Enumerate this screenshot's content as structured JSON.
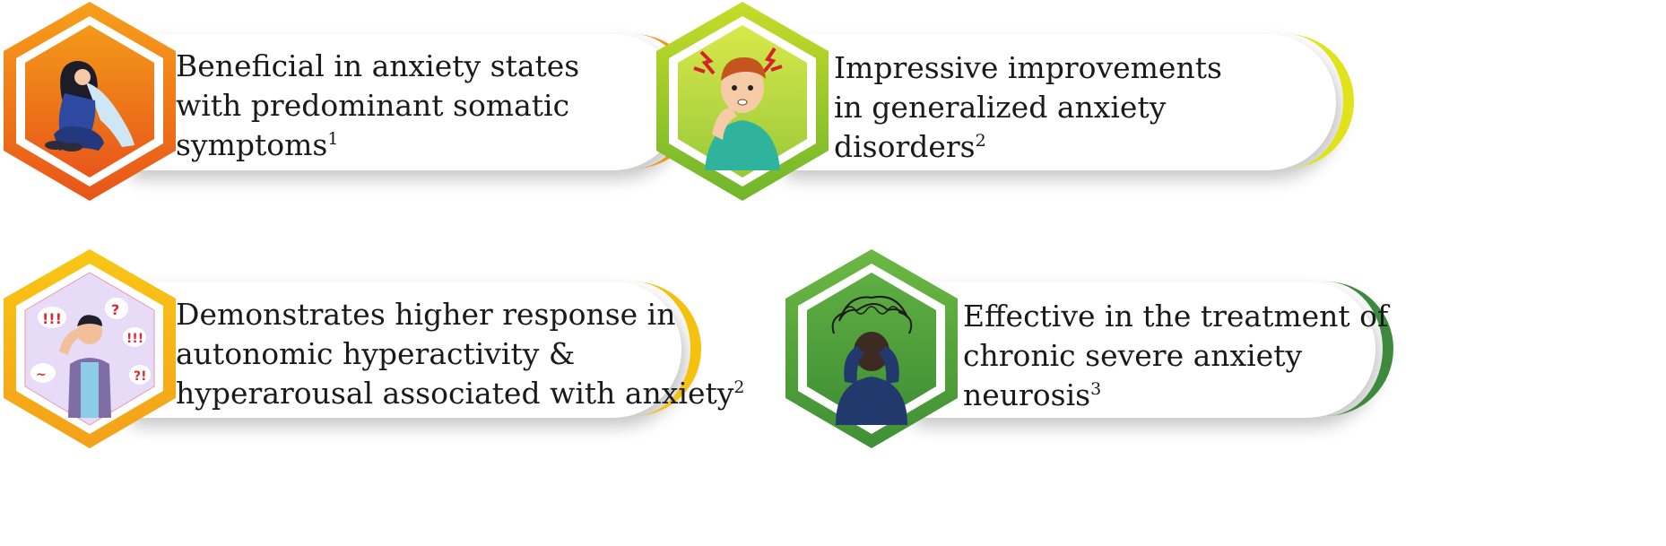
{
  "cards": [
    {
      "lines": [
        "Beneficial in anxiety states",
        "with predominant somatic",
        "symptoms"
      ],
      "ref": "1",
      "colors": {
        "outer": "#f07d1a",
        "outer2": "#e8561a",
        "inner": "#ef7a14",
        "innerLight": "#f7a21e",
        "arc": "#f29611"
      },
      "illustration": "woman-sitting-hugging-knees"
    },
    {
      "lines": [
        "Impressive improvements",
        "in generalized anxiety",
        "disorders"
      ],
      "ref": "2",
      "colors": {
        "outer": "#9ccc2a",
        "outer2": "#6fb52c",
        "inner": "#a8d12a",
        "innerLight": "#d9e84a",
        "arc": "#e0e21a"
      },
      "illustration": "stressed-man-biting-nails"
    },
    {
      "lines": [
        "Demonstrates higher response in",
        "autonomic hyperactivity &",
        "hyperarousal associated with anxiety"
      ],
      "ref": "2",
      "colors": {
        "outer": "#f7b916",
        "outer2": "#f3a31a",
        "inner": "#e5d6f7",
        "innerLight": "#f3e9fc",
        "arc": "#f5c10f"
      },
      "illustration": "confused-man-with-symbols"
    },
    {
      "lines": [
        "Effective in the treatment of",
        "chronic severe anxiety",
        "neurosis"
      ],
      "ref": "3",
      "colors": {
        "outer": "#5aa83a",
        "outer2": "#3f8f35",
        "inner": "#4e9c3a",
        "innerLight": "#6cb443",
        "arc": "#3d8a3f"
      },
      "illustration": "person-holding-head-scribbles"
    }
  ]
}
